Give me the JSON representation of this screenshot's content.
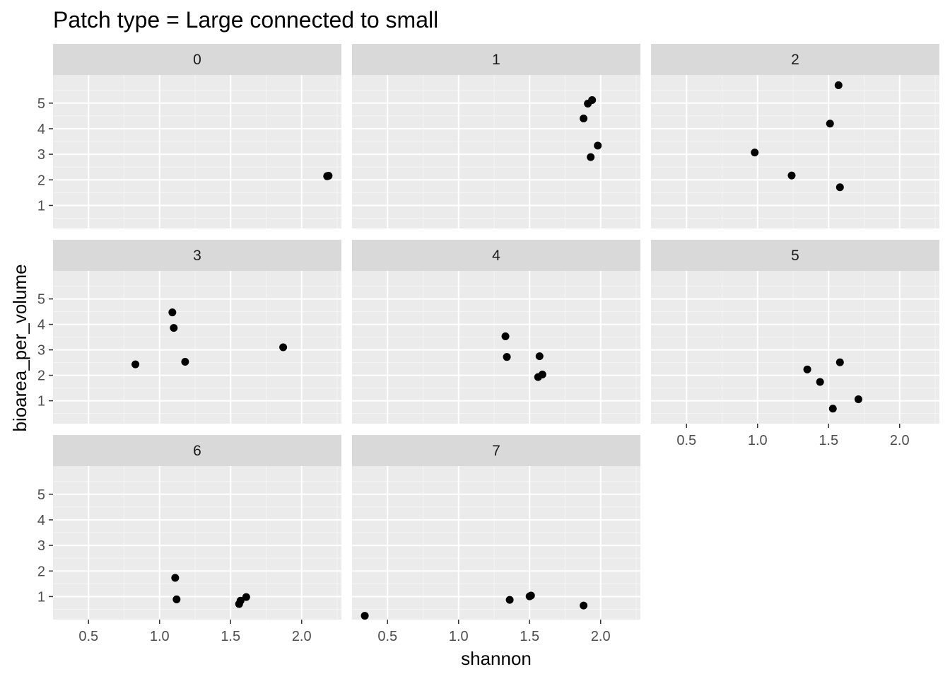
{
  "chart_data": {
    "type": "scatter",
    "title": "Patch type = Large connected to small",
    "xlabel": "shannon",
    "ylabel": "bioarea_per_volume",
    "xlim": [
      0.25,
      2.28
    ],
    "ylim": [
      0.1,
      6.1
    ],
    "xticks": [
      0.5,
      1.0,
      1.5,
      2.0
    ],
    "xtick_labels": [
      "0.5",
      "1.0",
      "1.5",
      "2.0"
    ],
    "yticks": [
      1,
      2,
      3,
      4,
      5
    ],
    "ytick_labels": [
      "1",
      "2",
      "3",
      "4",
      "5"
    ],
    "grid": true,
    "point_color": "#000000",
    "panel_background": "#ebebeb",
    "strip_background": "#d9d9d9",
    "panels": [
      {
        "label": "0",
        "x": [
          2.18,
          2.19,
          2.18
        ],
        "y": [
          2.15,
          2.16,
          2.14
        ]
      },
      {
        "label": "1",
        "x": [
          1.94,
          1.91,
          1.88,
          1.98,
          1.93
        ],
        "y": [
          5.12,
          4.98,
          4.4,
          3.34,
          2.89
        ]
      },
      {
        "label": "2",
        "x": [
          1.57,
          1.51,
          0.98,
          1.24,
          1.58
        ],
        "y": [
          5.7,
          4.2,
          3.07,
          2.17,
          1.71
        ]
      },
      {
        "label": "3",
        "x": [
          1.09,
          1.1,
          1.87,
          1.18,
          0.83
        ],
        "y": [
          4.47,
          3.86,
          3.1,
          2.53,
          2.43
        ]
      },
      {
        "label": "4",
        "x": [
          1.33,
          1.34,
          1.57,
          1.59,
          1.56
        ],
        "y": [
          3.53,
          2.72,
          2.75,
          2.03,
          1.93
        ]
      },
      {
        "label": "5",
        "x": [
          1.35,
          1.58,
          1.44,
          1.71,
          1.53
        ],
        "y": [
          2.23,
          2.51,
          1.74,
          1.06,
          0.69
        ]
      },
      {
        "label": "6",
        "x": [
          1.11,
          1.12,
          1.61,
          1.57,
          1.56
        ],
        "y": [
          1.73,
          0.89,
          0.98,
          0.84,
          0.71
        ]
      },
      {
        "label": "7",
        "x": [
          1.5,
          1.51,
          1.36,
          1.88,
          0.34
        ],
        "y": [
          1.01,
          1.04,
          0.87,
          0.65,
          0.25
        ]
      }
    ]
  }
}
